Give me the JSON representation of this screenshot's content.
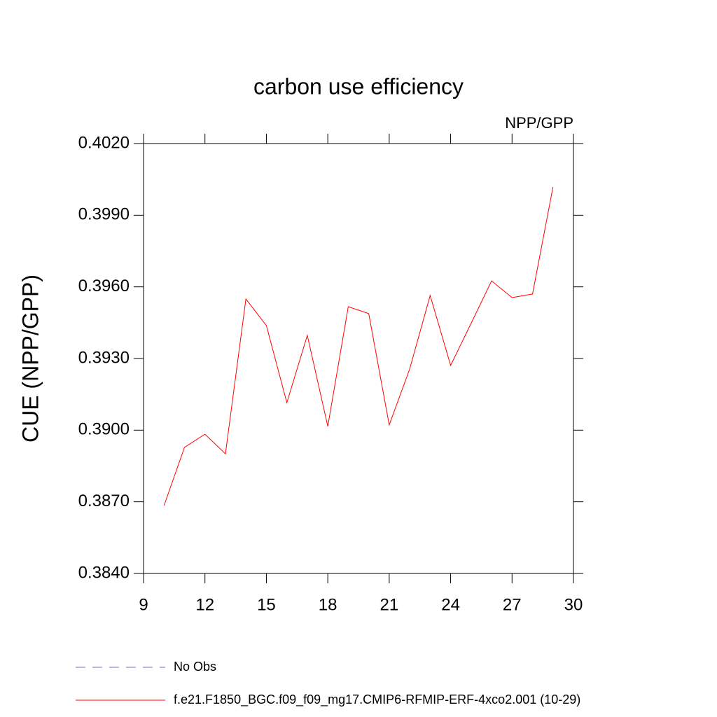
{
  "chart_data": {
    "type": "line",
    "title": "carbon use efficiency",
    "subtitle": "NPP/GPP",
    "y_label": "CUE  (NPP/GPP)",
    "x": [
      10,
      11,
      12,
      13,
      14,
      15,
      16,
      17,
      18,
      19,
      20,
      21,
      22,
      23,
      24,
      25,
      26,
      27,
      28,
      29
    ],
    "series": [
      {
        "name": "No Obs",
        "color": "#7b68c8",
        "dashed": true,
        "values": [
          null,
          null,
          null,
          null,
          null,
          null,
          null,
          null,
          null,
          null,
          null,
          null,
          null,
          null,
          null,
          null,
          null,
          null,
          null,
          null
        ]
      },
      {
        "name": "f.e21.F1850_BGC.f09_f09_mg17.CMIP6-RFMIP-ERF-4xco2.001 (10-29)",
        "color": "#ff0000",
        "dashed": false,
        "values": [
          0.38684,
          0.38928,
          0.38983,
          0.38901,
          0.39549,
          0.39438,
          0.39115,
          0.39397,
          0.39016,
          0.39517,
          0.39488,
          0.39022,
          0.39256,
          0.39564,
          0.39271,
          0.39447,
          0.39625,
          0.39555,
          0.3957,
          0.40018
        ]
      }
    ],
    "xlim": [
      9,
      30
    ],
    "xticks": [
      9,
      12,
      15,
      18,
      21,
      24,
      27,
      30
    ],
    "ylim": [
      0.384,
      0.402
    ],
    "yticks": [
      {
        "value": 0.384,
        "label": "0.3840"
      },
      {
        "value": 0.387,
        "label": "0.3870"
      },
      {
        "value": 0.39,
        "label": "0.3900"
      },
      {
        "value": 0.393,
        "label": "0.3930"
      },
      {
        "value": 0.396,
        "label": "0.3960"
      },
      {
        "value": 0.399,
        "label": "0.3990"
      },
      {
        "value": 0.402,
        "label": "0.4020"
      }
    ]
  }
}
